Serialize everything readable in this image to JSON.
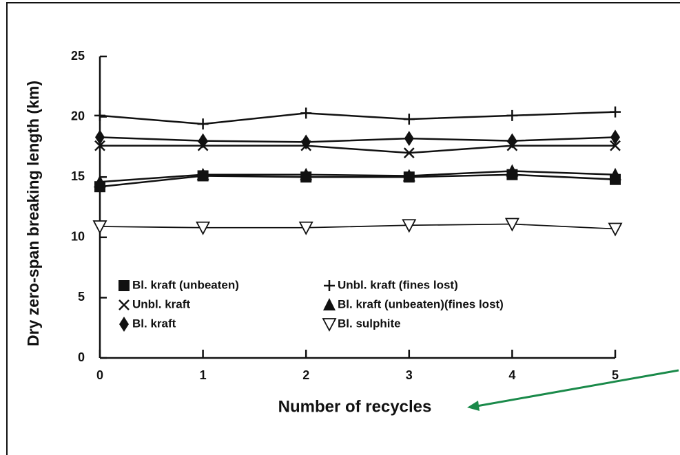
{
  "chart_data": {
    "type": "line",
    "x_label": "Number of recycles",
    "y_label": "Dry zero-span breaking length (km)",
    "x": [
      0,
      1,
      2,
      3,
      4,
      5
    ],
    "xlim": [
      0,
      5
    ],
    "xticks": [
      0,
      1,
      2,
      3,
      4,
      5
    ],
    "ylim": [
      0,
      25
    ],
    "yticks": [
      0,
      5,
      10,
      15,
      20,
      25
    ],
    "series": [
      {
        "name": "Bl. kraft (unbeaten)",
        "marker": "square",
        "color": "#111111",
        "values": [
          14.2,
          15.1,
          15.0,
          15.0,
          15.2,
          14.8
        ]
      },
      {
        "name": "Unbl. kraft",
        "marker": "x",
        "color": "#111111",
        "values": [
          17.6,
          17.6,
          17.6,
          17.0,
          17.6,
          17.6
        ]
      },
      {
        "name": "Bl. kraft",
        "marker": "diamond",
        "color": "#111111",
        "values": [
          18.3,
          18.0,
          17.9,
          18.2,
          18.0,
          18.3
        ]
      },
      {
        "name": "Unbl. kraft (fines lost)",
        "marker": "plus",
        "color": "#111111",
        "values": [
          20.1,
          19.4,
          20.3,
          19.8,
          20.1,
          20.4
        ]
      },
      {
        "name": "Bl. kraft (unbeaten)(fines lost)",
        "marker": "triangle",
        "color": "#111111",
        "values": [
          14.6,
          15.2,
          15.2,
          15.1,
          15.5,
          15.2
        ]
      },
      {
        "name": "Bl. sulphite",
        "marker": "triangle-down-open",
        "color": "#111111",
        "values": [
          10.9,
          10.8,
          10.8,
          11.0,
          11.1,
          10.7
        ]
      }
    ]
  }
}
